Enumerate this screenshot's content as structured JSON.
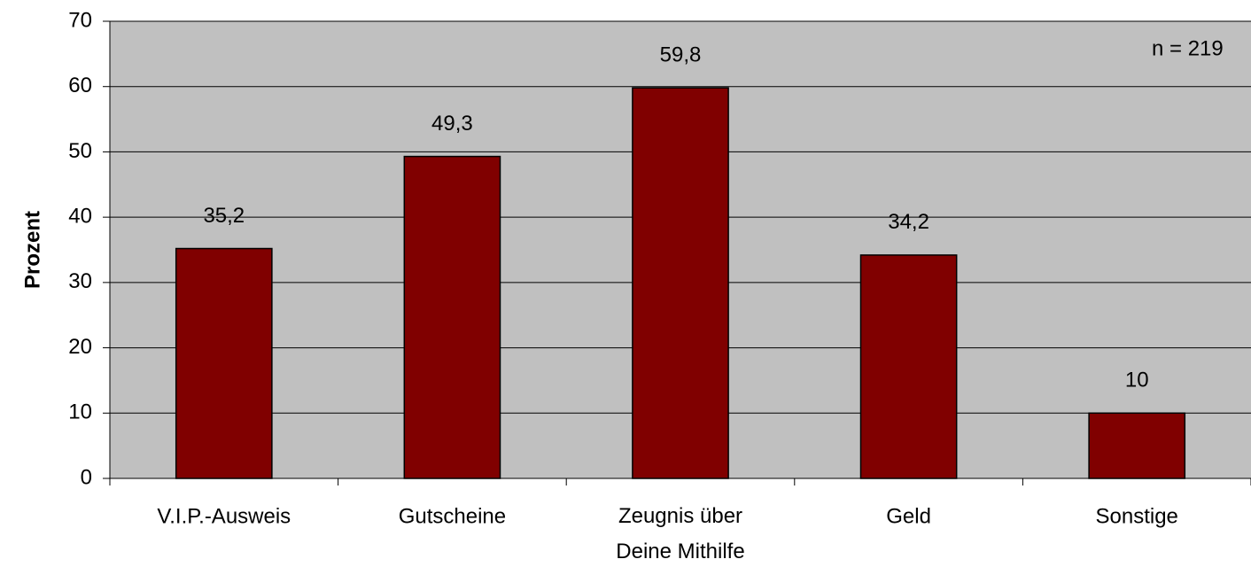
{
  "chart_data": {
    "type": "bar",
    "y_label": "Prozent",
    "annotation": "n = 219",
    "categories": [
      "V.I.P.-Ausweis",
      "Gutscheine",
      "Zeugnis über\nDeine Mithilfe",
      "Geld",
      "Sonstige"
    ],
    "values": [
      35.2,
      49.3,
      59.8,
      34.2,
      10
    ],
    "value_labels": [
      "35,2",
      "49,3",
      "59,8",
      "34,2",
      "10"
    ],
    "color": "#800000",
    "background": "#c0c0c0",
    "ylim": [
      0,
      70
    ],
    "yticks": [
      0,
      10,
      20,
      30,
      40,
      50,
      60,
      70
    ],
    "grid": true
  }
}
